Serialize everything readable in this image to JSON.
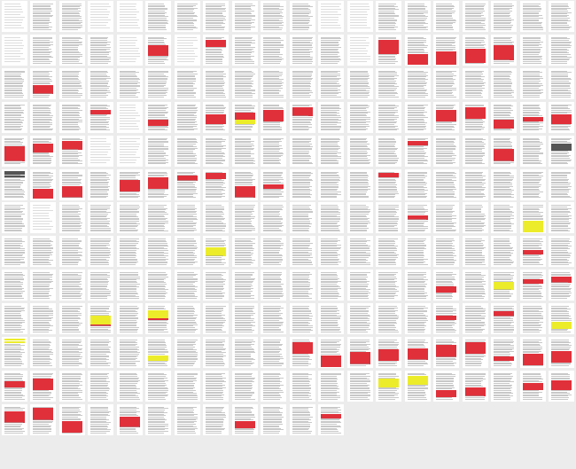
{
  "document": {
    "view": "page-thumbnail-grid",
    "columns": 20,
    "page_count": 252
  },
  "highlight_colors": {
    "red": "#e0303a",
    "yellow": "#ecec2a",
    "gray": "#555555",
    "text": "#9a9a9a"
  },
  "pages": [
    {
      "rows": "",
      "top": "",
      "dense": false
    },
    {
      "rows": "",
      "top": "",
      "dense": true
    },
    {
      "rows": "",
      "top": "",
      "dense": true
    },
    {
      "rows": "",
      "top": "",
      "dense": false
    },
    {
      "rows": "",
      "top": "",
      "dense": false
    },
    {
      "rows": "",
      "top": "",
      "dense": true
    },
    {
      "rows": "",
      "top": "",
      "dense": true
    },
    {
      "rows": "",
      "top": "",
      "dense": true
    },
    {
      "rows": "",
      "top": "",
      "dense": true
    },
    {
      "rows": "",
      "top": "",
      "dense": true
    },
    {
      "rows": "",
      "top": "",
      "dense": true
    },
    {
      "rows": "",
      "top": "",
      "dense": false
    },
    {
      "rows": "",
      "top": "",
      "dense": false
    },
    {
      "rows": "",
      "top": "",
      "dense": true
    },
    {
      "rows": "",
      "top": "",
      "dense": true
    },
    {
      "rows": "",
      "top": "",
      "dense": true
    },
    {
      "rows": "",
      "top": "",
      "dense": true
    },
    {
      "rows": "",
      "top": "",
      "dense": true
    },
    {
      "rows": "",
      "top": "",
      "dense": true
    },
    {
      "rows": "",
      "top": "",
      "dense": true
    },
    {
      "rows": "",
      "top": "",
      "dense": false
    },
    {
      "rows": "",
      "top": "",
      "dense": true
    },
    {
      "rows": "",
      "top": "",
      "dense": true
    },
    {
      "rows": "",
      "top": "",
      "dense": true
    },
    {
      "rows": "",
      "top": "",
      "dense": false
    },
    {
      "rows": "rrrrrrr",
      "top": "",
      "dense": true
    },
    {
      "rows": "",
      "top": "",
      "dense": false
    },
    {
      "rows": "rrrrr",
      "top": "",
      "dense": true
    },
    {
      "rows": "",
      "top": "",
      "dense": true
    },
    {
      "rows": "",
      "top": "",
      "dense": true
    },
    {
      "rows": "",
      "top": "",
      "dense": true
    },
    {
      "rows": "",
      "top": "",
      "dense": true
    },
    {
      "rows": "",
      "top": "",
      "dense": false
    },
    {
      "rows": "rrrrrrrrrr",
      "top": "",
      "dense": true
    },
    {
      "rows": "rrrrrrrrrr",
      "top": "",
      "dense": true
    },
    {
      "rows": "rrrrrrrrrr",
      "top": "",
      "dense": true
    },
    {
      "rows": "rrrrrrrrrr",
      "top": "",
      "dense": true
    },
    {
      "rows": "rrrrrrrrrr",
      "top": "",
      "dense": true
    },
    {
      "rows": "",
      "top": "",
      "dense": true
    },
    {
      "rows": "",
      "top": "",
      "dense": true
    },
    {
      "rows": "",
      "top": "",
      "dense": true
    },
    {
      "rows": "rrrrrr",
      "top": "",
      "dense": true
    },
    {
      "rows": "",
      "top": "",
      "dense": true
    },
    {
      "rows": "",
      "top": "",
      "dense": true
    },
    {
      "rows": "",
      "top": "",
      "dense": true
    },
    {
      "rows": "",
      "top": "",
      "dense": true
    },
    {
      "rows": "",
      "top": "",
      "dense": true
    },
    {
      "rows": "",
      "top": "",
      "dense": true
    },
    {
      "rows": "",
      "top": "",
      "dense": true
    },
    {
      "rows": "",
      "top": "",
      "dense": true
    },
    {
      "rows": "",
      "top": "",
      "dense": true
    },
    {
      "rows": "",
      "top": "",
      "dense": true
    },
    {
      "rows": "",
      "top": "",
      "dense": true
    },
    {
      "rows": "",
      "top": "",
      "dense": true
    },
    {
      "rows": "",
      "top": "",
      "dense": true
    },
    {
      "rows": "",
      "top": "",
      "dense": true
    },
    {
      "rows": "",
      "top": "",
      "dense": true
    },
    {
      "rows": "",
      "top": "",
      "dense": true
    },
    {
      "rows": "",
      "top": "",
      "dense": true
    },
    {
      "rows": "",
      "top": "",
      "dense": true
    },
    {
      "rows": "",
      "top": "",
      "dense": true
    },
    {
      "rows": "",
      "top": "",
      "dense": true
    },
    {
      "rows": "",
      "top": "",
      "dense": true
    },
    {
      "rows": "rrr",
      "top": "",
      "dense": true
    },
    {
      "rows": "",
      "top": "",
      "dense": false
    },
    {
      "rows": "rrrr",
      "top": "",
      "dense": true
    },
    {
      "rows": "",
      "top": "",
      "dense": true
    },
    {
      "rows": "rrrrrrr",
      "top": "",
      "dense": true
    },
    {
      "rows": "rrrrryyy",
      "top": "",
      "dense": true
    },
    {
      "rows": "rrrrrrrr",
      "top": "",
      "dense": true
    },
    {
      "rows": "rrrrrr",
      "top": "",
      "dense": true
    },
    {
      "rows": "",
      "top": "",
      "dense": true
    },
    {
      "rows": "",
      "top": "",
      "dense": true
    },
    {
      "rows": "",
      "top": "",
      "dense": true
    },
    {
      "rows": "",
      "top": "",
      "dense": true
    },
    {
      "rows": "rrrrrrrr",
      "top": "",
      "dense": true
    },
    {
      "rows": "rrrrrrrr",
      "top": "",
      "dense": true
    },
    {
      "rows": "rrrrrr",
      "top": "",
      "dense": true
    },
    {
      "rows": "rrr",
      "top": "",
      "dense": true
    },
    {
      "rows": "rrrrrrr",
      "top": "",
      "dense": true
    },
    {
      "rows": "rrrrrrrrrr",
      "top": "",
      "dense": true
    },
    {
      "rows": "rrrrrr",
      "top": "",
      "dense": true
    },
    {
      "rows": "rrrrrr",
      "top": "",
      "dense": true
    },
    {
      "rows": "",
      "top": "",
      "dense": false
    },
    {
      "rows": "",
      "top": "",
      "dense": false
    },
    {
      "rows": "",
      "top": "",
      "dense": true
    },
    {
      "rows": "",
      "top": "",
      "dense": true
    },
    {
      "rows": "",
      "top": "",
      "dense": true
    },
    {
      "rows": "",
      "top": "",
      "dense": true
    },
    {
      "rows": "",
      "top": "",
      "dense": true
    },
    {
      "rows": "",
      "top": "",
      "dense": true
    },
    {
      "rows": "",
      "top": "",
      "dense": true
    },
    {
      "rows": "",
      "top": "",
      "dense": true
    },
    {
      "rows": "",
      "top": "",
      "dense": true
    },
    {
      "rows": "rrr",
      "top": "",
      "dense": true
    },
    {
      "rows": "",
      "top": "",
      "dense": true
    },
    {
      "rows": "",
      "top": "",
      "dense": true
    },
    {
      "rows": "rrrrrrrr",
      "top": "",
      "dense": true
    },
    {
      "rows": "",
      "top": "",
      "dense": true
    },
    {
      "rows": "ggggg",
      "top": "",
      "dense": true
    },
    {
      "rows": "",
      "top": "ggg",
      "dense": true
    },
    {
      "rows": "rrrrrrrr",
      "top": "",
      "dense": true
    },
    {
      "rows": "rrrrrrrr",
      "top": "",
      "dense": true
    },
    {
      "rows": "",
      "top": "",
      "dense": true
    },
    {
      "rows": "rrrrrrrr",
      "top": "",
      "dense": true
    },
    {
      "rows": "rrrrrrrr",
      "top": "",
      "dense": true
    },
    {
      "rows": "rrr",
      "top": "",
      "dense": true
    },
    {
      "rows": "rrrr",
      "top": "",
      "dense": true
    },
    {
      "rows": "rrrrrrrr",
      "top": "",
      "dense": true
    },
    {
      "rows": "rrr",
      "top": "",
      "dense": true
    },
    {
      "rows": "",
      "top": "",
      "dense": true
    },
    {
      "rows": "",
      "top": "",
      "dense": true
    },
    {
      "rows": "",
      "top": "",
      "dense": true
    },
    {
      "rows": "rrr",
      "top": "",
      "dense": true
    },
    {
      "rows": "",
      "top": "",
      "dense": true
    },
    {
      "rows": "",
      "top": "",
      "dense": true
    },
    {
      "rows": "",
      "top": "",
      "dense": true
    },
    {
      "rows": "",
      "top": "",
      "dense": true
    },
    {
      "rows": "",
      "top": "",
      "dense": true
    },
    {
      "rows": "",
      "top": "",
      "dense": true
    },
    {
      "rows": "",
      "top": "",
      "dense": true
    },
    {
      "rows": "",
      "top": "",
      "dense": false
    },
    {
      "rows": "",
      "top": "",
      "dense": true
    },
    {
      "rows": "",
      "top": "",
      "dense": true
    },
    {
      "rows": "",
      "top": "",
      "dense": true
    },
    {
      "rows": "",
      "top": "",
      "dense": true
    },
    {
      "rows": "",
      "top": "",
      "dense": true
    },
    {
      "rows": "",
      "top": "",
      "dense": true
    },
    {
      "rows": "",
      "top": "",
      "dense": true
    },
    {
      "rows": "",
      "top": "",
      "dense": true
    },
    {
      "rows": "",
      "top": "",
      "dense": true
    },
    {
      "rows": "",
      "top": "",
      "dense": true
    },
    {
      "rows": "",
      "top": "",
      "dense": true
    },
    {
      "rows": "",
      "top": "",
      "dense": true
    },
    {
      "rows": "rrr",
      "top": "",
      "dense": true
    },
    {
      "rows": "",
      "top": "",
      "dense": true
    },
    {
      "rows": "",
      "top": "",
      "dense": true
    },
    {
      "rows": "",
      "top": "",
      "dense": true
    },
    {
      "rows": "yyyyyyyy",
      "top": "",
      "dense": true
    },
    {
      "rows": "",
      "top": "",
      "dense": true
    },
    {
      "rows": "",
      "top": "",
      "dense": true
    },
    {
      "rows": "",
      "top": "",
      "dense": true
    },
    {
      "rows": "",
      "top": "",
      "dense": true
    },
    {
      "rows": "",
      "top": "",
      "dense": true
    },
    {
      "rows": "",
      "top": "",
      "dense": true
    },
    {
      "rows": "",
      "top": "",
      "dense": true
    },
    {
      "rows": "",
      "top": "",
      "dense": true
    },
    {
      "rows": "yyyyyy",
      "top": "",
      "dense": true
    },
    {
      "rows": "",
      "top": "",
      "dense": true
    },
    {
      "rows": "",
      "top": "",
      "dense": true
    },
    {
      "rows": "",
      "top": "",
      "dense": true
    },
    {
      "rows": "",
      "top": "",
      "dense": true
    },
    {
      "rows": "",
      "top": "",
      "dense": true
    },
    {
      "rows": "",
      "top": "",
      "dense": true
    },
    {
      "rows": "",
      "top": "",
      "dense": true
    },
    {
      "rows": "",
      "top": "",
      "dense": true
    },
    {
      "rows": "",
      "top": "",
      "dense": true
    },
    {
      "rows": "",
      "top": "",
      "dense": true
    },
    {
      "rows": "rrr",
      "top": "",
      "dense": true
    },
    {
      "rows": "",
      "top": "",
      "dense": true
    },
    {
      "rows": "",
      "top": "",
      "dense": true
    },
    {
      "rows": "",
      "top": "",
      "dense": true
    },
    {
      "rows": "",
      "top": "",
      "dense": true
    },
    {
      "rows": "",
      "top": "",
      "dense": true
    },
    {
      "rows": "",
      "top": "",
      "dense": true
    },
    {
      "rows": "",
      "top": "",
      "dense": true
    },
    {
      "rows": "",
      "top": "",
      "dense": true
    },
    {
      "rows": "",
      "top": "",
      "dense": true
    },
    {
      "rows": "",
      "top": "",
      "dense": true
    },
    {
      "rows": "",
      "top": "",
      "dense": true
    },
    {
      "rows": "",
      "top": "",
      "dense": true
    },
    {
      "rows": "",
      "top": "",
      "dense": true
    },
    {
      "rows": "",
      "top": "",
      "dense": true
    },
    {
      "rows": "",
      "top": "",
      "dense": true
    },
    {
      "rows": "",
      "top": "",
      "dense": true
    },
    {
      "rows": "rrrr",
      "top": "",
      "dense": true
    },
    {
      "rows": "",
      "top": "",
      "dense": true
    },
    {
      "rows": "yyyyy",
      "top": "",
      "dense": true
    },
    {
      "rows": "rrr",
      "top": "",
      "dense": true
    },
    {
      "rows": "rrrr",
      "top": "",
      "dense": true
    },
    {
      "rows": "",
      "top": "",
      "dense": true
    },
    {
      "rows": "",
      "top": "",
      "dense": true
    },
    {
      "rows": "",
      "top": "",
      "dense": true
    },
    {
      "rows": "yyyyyyr",
      "top": "",
      "dense": true
    },
    {
      "rows": "",
      "top": "",
      "dense": true
    },
    {
      "rows": "yyyyyyr",
      "top": "",
      "dense": true
    },
    {
      "rows": "",
      "top": "",
      "dense": true
    },
    {
      "rows": "",
      "top": "",
      "dense": true
    },
    {
      "rows": "",
      "top": "",
      "dense": true
    },
    {
      "rows": "",
      "top": "",
      "dense": true
    },
    {
      "rows": "",
      "top": "",
      "dense": true
    },
    {
      "rows": "",
      "top": "",
      "dense": true
    },
    {
      "rows": "",
      "top": "",
      "dense": true
    },
    {
      "rows": "",
      "top": "",
      "dense": true
    },
    {
      "rows": "",
      "top": "",
      "dense": true
    },
    {
      "rows": "rrr",
      "top": "",
      "dense": true
    },
    {
      "rows": "",
      "top": "",
      "dense": true
    },
    {
      "rows": "rrr",
      "top": "",
      "dense": true
    },
    {
      "rows": "",
      "top": "",
      "dense": true
    },
    {
      "rows": "yyyyy",
      "top": "",
      "dense": true
    },
    {
      "rows": "",
      "top": "yy",
      "dense": true
    },
    {
      "rows": "",
      "top": "",
      "dense": true
    },
    {
      "rows": "",
      "top": "",
      "dense": true
    },
    {
      "rows": "",
      "top": "",
      "dense": true
    },
    {
      "rows": "",
      "top": "",
      "dense": true
    },
    {
      "rows": "yyyy",
      "top": "",
      "dense": true
    },
    {
      "rows": "",
      "top": "",
      "dense": true
    },
    {
      "rows": "",
      "top": "",
      "dense": true
    },
    {
      "rows": "",
      "top": "",
      "dense": true
    },
    {
      "rows": "",
      "top": "",
      "dense": true
    },
    {
      "rows": "rrrrrrrr",
      "top": "",
      "dense": true
    },
    {
      "rows": "rrrrrrrr",
      "top": "",
      "dense": true
    },
    {
      "rows": "rrrrrrrr",
      "top": "",
      "dense": true
    },
    {
      "rows": "rrrrrrrr",
      "top": "",
      "dense": true
    },
    {
      "rows": "rrrrrrrr",
      "top": "",
      "dense": true
    },
    {
      "rows": "rrrrrrrr",
      "top": "",
      "dense": true
    },
    {
      "rows": "rrrrrrrr",
      "top": "",
      "dense": true
    },
    {
      "rows": "rrr",
      "top": "",
      "dense": true
    },
    {
      "rows": "rrrrrrrr",
      "top": "",
      "dense": true
    },
    {
      "rows": "rrrrrrrr",
      "top": "",
      "dense": true
    },
    {
      "rows": "rrrr",
      "top": "",
      "dense": true
    },
    {
      "rows": "rrrrrrrr",
      "top": "",
      "dense": true
    },
    {
      "rows": "",
      "top": "",
      "dense": true
    },
    {
      "rows": "",
      "top": "",
      "dense": true
    },
    {
      "rows": "",
      "top": "",
      "dense": true
    },
    {
      "rows": "",
      "top": "",
      "dense": true
    },
    {
      "rows": "",
      "top": "",
      "dense": true
    },
    {
      "rows": "",
      "top": "",
      "dense": true
    },
    {
      "rows": "",
      "top": "",
      "dense": true
    },
    {
      "rows": "",
      "top": "",
      "dense": true
    },
    {
      "rows": "",
      "top": "",
      "dense": true
    },
    {
      "rows": "",
      "top": "",
      "dense": true
    },
    {
      "rows": "",
      "top": "",
      "dense": true
    },
    {
      "rows": "yyyyyy",
      "top": "",
      "dense": true
    },
    {
      "rows": "yyyyyy",
      "top": "",
      "dense": true
    },
    {
      "rows": "rrrrr",
      "top": "",
      "dense": true
    },
    {
      "rows": "rrrrrr",
      "top": "",
      "dense": true
    },
    {
      "rows": "",
      "top": "",
      "dense": true
    },
    {
      "rows": "rrrrr",
      "top": "",
      "dense": true
    },
    {
      "rows": "rrrrrrr",
      "top": "",
      "dense": true
    },
    {
      "rows": "rrrrrrrr",
      "top": "",
      "dense": true
    },
    {
      "rows": "rrrrrrrr",
      "top": "",
      "dense": true
    },
    {
      "rows": "rrrrrrrr",
      "top": "",
      "dense": true
    },
    {
      "rows": "",
      "top": "",
      "dense": true
    },
    {
      "rows": "rrrrrrr",
      "top": "",
      "dense": true
    },
    {
      "rows": "",
      "top": "",
      "dense": true
    },
    {
      "rows": "",
      "top": "",
      "dense": true
    },
    {
      "rows": "",
      "top": "",
      "dense": true
    },
    {
      "rows": "rrrrr",
      "top": "",
      "dense": true
    },
    {
      "rows": "",
      "top": "",
      "dense": true
    },
    {
      "rows": "",
      "top": "",
      "dense": true
    },
    {
      "rows": "rrr",
      "top": "",
      "dense": true
    },
    {
      "rows": "",
      "top": "",
      "dense": true
    },
    {
      "rows": "",
      "top": "",
      "dense": true
    },
    {
      "rows": "",
      "top": "",
      "dense": true
    },
    {
      "rows": "",
      "top": "",
      "dense": true
    },
    {
      "rows": "",
      "top": "",
      "dense": true
    },
    {
      "rows": "",
      "top": "",
      "dense": true
    },
    {
      "rows": "",
      "top": "",
      "dense": true
    },
    {
      "rows": "",
      "top": "",
      "dense": true
    },
    {
      "rows": "",
      "top": "",
      "dense": true
    },
    {
      "rows": "",
      "top": "",
      "dense": true
    },
    {
      "rows": "",
      "top": "",
      "dense": true
    },
    {
      "rows": "",
      "top": "",
      "dense": true
    },
    {
      "rows": "",
      "top": "",
      "dense": true
    },
    {
      "rows": "",
      "top": "",
      "dense": true
    },
    {
      "rows": "",
      "top": "",
      "dense": true
    },
    {
      "rows": "",
      "top": "",
      "dense": true
    },
    {
      "rows": "",
      "top": "",
      "dense": true
    },
    {
      "rows": "",
      "top": "",
      "dense": true
    },
    {
      "rows": "",
      "top": "",
      "dense": true
    },
    {
      "rows": "",
      "top": "",
      "dense": true
    }
  ]
}
